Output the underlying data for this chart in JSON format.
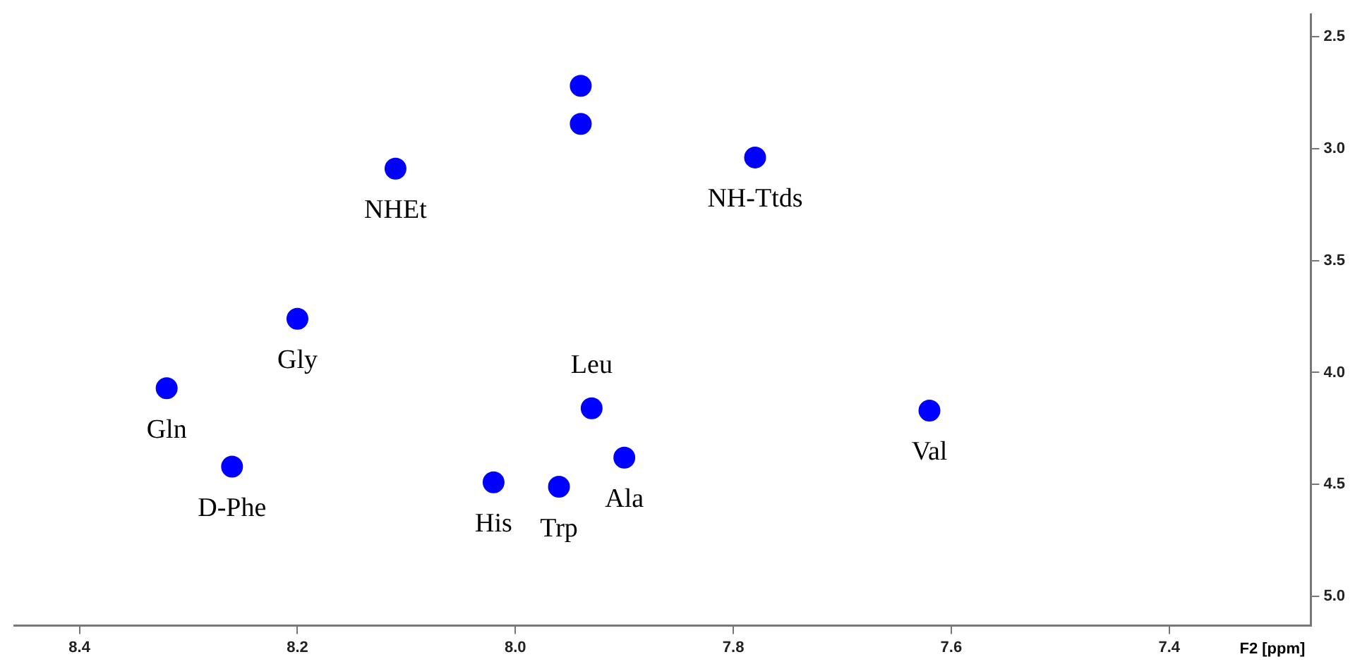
{
  "chart_data": {
    "type": "scatter",
    "xlabel": "F2 [ppm]",
    "series": [
      {
        "color": "#0000ff",
        "x": [
          7.94,
          7.94,
          8.11,
          7.78,
          8.2,
          8.32,
          8.26,
          8.02,
          7.96,
          7.93,
          7.9,
          7.62
        ],
        "values": [
          2.72,
          2.89,
          3.09,
          3.04,
          3.76,
          4.07,
          4.42,
          4.49,
          4.51,
          4.16,
          4.38,
          4.17
        ],
        "value_labels": [
          null,
          null,
          "NHEt",
          "NH-Ttds",
          "Gly",
          "Gln",
          "D-Phe",
          "His",
          "Trp",
          "Leu",
          "Ala",
          "Val"
        ]
      }
    ],
    "xlim": [
      8.46,
      7.27
    ],
    "xticks": [
      8.4,
      8.2,
      {
        "value": 8.0,
        "label": "8.0"
      },
      7.8,
      7.6,
      7.4
    ],
    "ylim": [
      5.13,
      2.4
    ],
    "yticks": [
      2.5,
      {
        "value": 3.0,
        "label": "3.0"
      },
      3.5,
      {
        "value": 4.0,
        "label": "4.0"
      },
      4.5,
      {
        "value": 5.0,
        "label": "5.0"
      }
    ],
    "marker": "circle",
    "grid": false,
    "legend": false
  }
}
